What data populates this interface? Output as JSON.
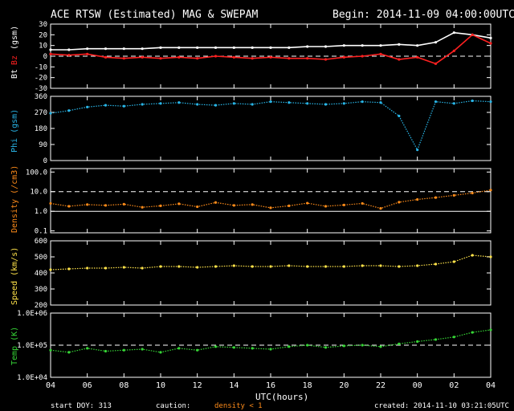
{
  "header": {
    "title": "ACE RTSW (Estimated) MAG & SWEPAM",
    "begin": "Begin: 2014-11-09 04:00:00UTC"
  },
  "footer": {
    "start_doy": "start DOY: 313",
    "caution": "caution:",
    "density_note": "density < 1",
    "created": "created: 2014-11-10 03:21:05UTC",
    "xlabel": "UTC(hours)"
  },
  "colors": {
    "bt": "#ffffff",
    "bz": "#ff2020",
    "phi": "#29b6e8",
    "density": "#ff8c1a",
    "speed": "#ffe34a",
    "temp": "#36d636"
  },
  "chart_data": [
    {
      "type": "scatter",
      "panel": "bt-bz",
      "ylabel_parts": [
        "Bt",
        "Bz",
        "(nT)"
      ],
      "ylabel_text": "Bt  Bz  (gsm)",
      "ylim": [
        -30,
        30
      ],
      "yticks": [
        "30",
        "20",
        "10",
        "0",
        "-10",
        "-20",
        "-30"
      ],
      "dashed_ref": [
        0
      ],
      "x_hours": [
        0,
        2,
        4,
        6,
        8,
        10,
        12,
        14,
        16,
        18,
        20,
        22,
        24,
        26,
        28,
        30,
        32,
        34,
        36,
        38,
        40,
        42,
        44,
        46,
        48
      ],
      "series": [
        {
          "name": "Bt",
          "values": [
            6,
            6,
            7,
            7,
            7,
            7,
            8,
            8,
            8,
            8,
            8,
            8,
            8,
            8,
            9,
            9,
            10,
            10,
            10,
            11,
            10,
            13,
            22,
            20,
            17
          ]
        },
        {
          "name": "Bz",
          "values": [
            2,
            1,
            2,
            -1,
            -2,
            -1,
            -2,
            -1,
            -2,
            0,
            -1,
            -2,
            -1,
            -2,
            -2,
            -3,
            -1,
            0,
            2,
            -3,
            -1,
            -7,
            5,
            20,
            12
          ]
        }
      ]
    },
    {
      "type": "scatter",
      "panel": "phi",
      "ylabel": "Phi (gsm)",
      "ylim": [
        0,
        360
      ],
      "yticks": [
        "360",
        "270",
        "180",
        "90",
        "0"
      ],
      "series": [
        {
          "name": "Phi",
          "values": [
            265,
            280,
            300,
            310,
            305,
            315,
            320,
            325,
            315,
            310,
            320,
            315,
            330,
            325,
            320,
            315,
            320,
            330,
            325,
            250,
            60,
            330,
            320,
            335,
            330
          ]
        }
      ]
    },
    {
      "type": "scatter",
      "panel": "density",
      "ylabel": "Density (/cm3)",
      "scale": "log",
      "ylim": [
        0.08,
        150
      ],
      "yticks": [
        "100.0",
        "10.0",
        "1.0",
        "0.1"
      ],
      "dashed_ref": [
        10
      ],
      "solid_ref": [
        1
      ],
      "series": [
        {
          "name": "Density",
          "values": [
            2.5,
            1.8,
            2.2,
            2.0,
            2.3,
            1.6,
            1.9,
            2.4,
            1.7,
            2.8,
            2.0,
            2.2,
            1.5,
            1.9,
            2.6,
            1.8,
            2.1,
            2.5,
            1.4,
            2.9,
            4.0,
            5.0,
            6.5,
            8.5,
            12.0
          ]
        }
      ]
    },
    {
      "type": "scatter",
      "panel": "speed",
      "ylabel": "Speed (km/s)",
      "ylim": [
        200,
        600
      ],
      "yticks": [
        "600",
        "500",
        "400",
        "300",
        "200"
      ],
      "series": [
        {
          "name": "Speed",
          "values": [
            420,
            425,
            430,
            430,
            435,
            430,
            440,
            440,
            435,
            440,
            445,
            440,
            440,
            445,
            440,
            440,
            440,
            445,
            445,
            440,
            445,
            455,
            470,
            510,
            500
          ]
        }
      ]
    },
    {
      "type": "scatter",
      "panel": "temp",
      "ylabel": "Temp (K)",
      "scale": "log",
      "ylim": [
        10000,
        1000000
      ],
      "yticks": [
        "1.0E+06",
        "1.0E+05",
        "1.0E+04"
      ],
      "dashed_ref": [
        100000
      ],
      "series": [
        {
          "name": "Temp",
          "values": [
            70000,
            60000,
            80000,
            65000,
            70000,
            75000,
            60000,
            80000,
            70000,
            90000,
            85000,
            80000,
            75000,
            90000,
            100000,
            85000,
            95000,
            100000,
            90000,
            110000,
            130000,
            150000,
            180000,
            250000,
            300000
          ]
        }
      ]
    }
  ],
  "xaxis": {
    "tick_labels": [
      "04",
      "06",
      "08",
      "10",
      "12",
      "14",
      "16",
      "18",
      "20",
      "22",
      "00",
      "02",
      "04"
    ],
    "range_hours": [
      0,
      48
    ]
  }
}
